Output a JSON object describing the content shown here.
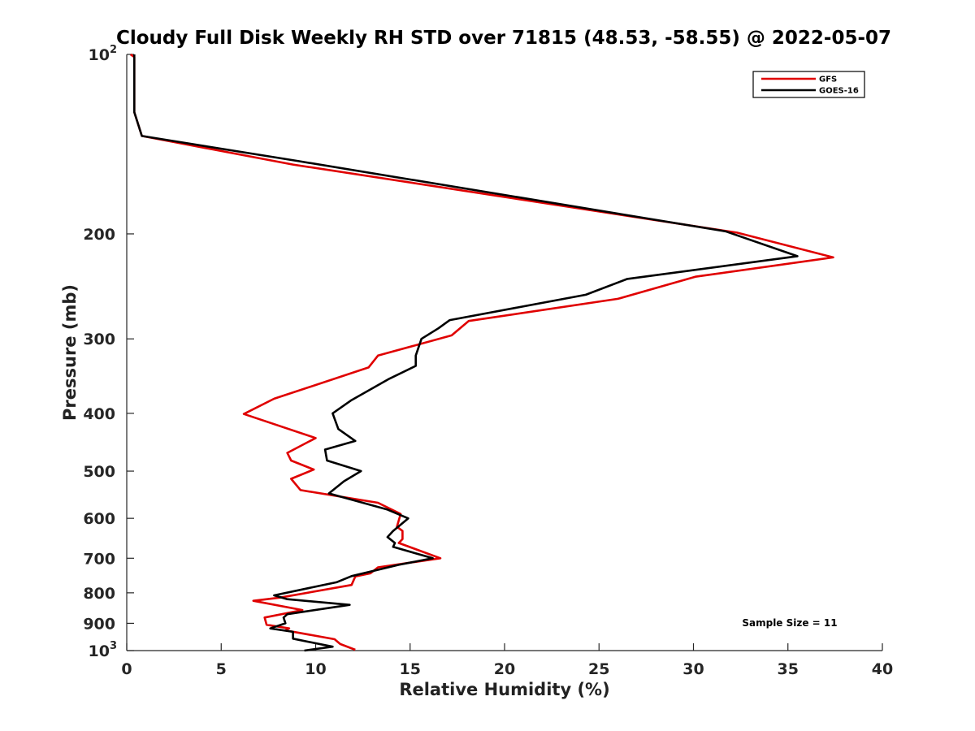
{
  "chart_data": {
    "type": "line",
    "title": "Cloudy Full Disk Weekly RH STD over 71815 (48.53, -58.55) @ 2022-05-07",
    "xlabel": "Relative Humidity (%)",
    "ylabel": "Pressure (mb)",
    "xlim": [
      0,
      40
    ],
    "ylim": [
      100,
      1000
    ],
    "y_scale": "log",
    "y_reversed": true,
    "grid": false,
    "legend_position": "top-right",
    "annotation": "Sample Size = 11",
    "x_ticks": [
      "0",
      "5",
      "10",
      "15",
      "20",
      "25",
      "30",
      "35",
      "40"
    ],
    "y_ticks": [
      {
        "value": 100,
        "base": "10",
        "exp": "2"
      },
      {
        "value": 200,
        "label": "200"
      },
      {
        "value": 300,
        "label": "300"
      },
      {
        "value": 400,
        "label": "400"
      },
      {
        "value": 500,
        "label": "500"
      },
      {
        "value": 600,
        "label": "600"
      },
      {
        "value": 700,
        "label": "700"
      },
      {
        "value": 800,
        "label": "800"
      },
      {
        "value": 900,
        "label": "900"
      },
      {
        "value": 1000,
        "base": "10",
        "exp": "3"
      }
    ],
    "series": [
      {
        "name": "GFS",
        "color": "#e00000",
        "points": [
          [
            0.2,
            100
          ],
          [
            0.4,
            101
          ],
          [
            0.4,
            125
          ],
          [
            0.8,
            137
          ],
          [
            8.8,
            153
          ],
          [
            32.3,
            199
          ],
          [
            37.4,
            219
          ],
          [
            30.1,
            236
          ],
          [
            26.0,
            257
          ],
          [
            18.1,
            280
          ],
          [
            17.2,
            296
          ],
          [
            13.3,
            320
          ],
          [
            12.8,
            335
          ],
          [
            7.8,
            378
          ],
          [
            6.2,
            401
          ],
          [
            10.0,
            440
          ],
          [
            8.5,
            466
          ],
          [
            8.7,
            480
          ],
          [
            9.9,
            497
          ],
          [
            8.7,
            515
          ],
          [
            9.2,
            538
          ],
          [
            13.3,
            565
          ],
          [
            14.5,
            590
          ],
          [
            14.3,
            620
          ],
          [
            14.6,
            630
          ],
          [
            14.6,
            650
          ],
          [
            14.4,
            660
          ],
          [
            16.6,
            700
          ],
          [
            13.3,
            725
          ],
          [
            12.9,
            742
          ],
          [
            12.1,
            751
          ],
          [
            11.9,
            776
          ],
          [
            8.1,
            815
          ],
          [
            6.7,
            825
          ],
          [
            9.3,
            855
          ],
          [
            7.3,
            880
          ],
          [
            7.4,
            905
          ],
          [
            8.6,
            918
          ],
          [
            8.4,
            925
          ],
          [
            11.0,
            957
          ],
          [
            11.3,
            975
          ],
          [
            12.1,
            997
          ]
        ]
      },
      {
        "name": "GOES-16",
        "color": "#000000",
        "points": [
          [
            0.4,
            100
          ],
          [
            0.4,
            101
          ],
          [
            0.4,
            125
          ],
          [
            0.8,
            137
          ],
          [
            9.1,
            151
          ],
          [
            31.7,
            198
          ],
          [
            35.5,
            218
          ],
          [
            26.5,
            238
          ],
          [
            24.3,
            253
          ],
          [
            17.1,
            279
          ],
          [
            16.5,
            288
          ],
          [
            15.6,
            300
          ],
          [
            15.3,
            320
          ],
          [
            15.3,
            333
          ],
          [
            13.9,
            350
          ],
          [
            11.9,
            380
          ],
          [
            10.9,
            400
          ],
          [
            11.2,
            425
          ],
          [
            12.1,
            445
          ],
          [
            10.5,
            460
          ],
          [
            10.6,
            480
          ],
          [
            12.4,
            500
          ],
          [
            11.5,
            520
          ],
          [
            10.7,
            545
          ],
          [
            13.8,
            580
          ],
          [
            14.9,
            600
          ],
          [
            14.1,
            630
          ],
          [
            13.8,
            645
          ],
          [
            14.2,
            660
          ],
          [
            14.1,
            670
          ],
          [
            16.2,
            700
          ],
          [
            14.4,
            718
          ],
          [
            11.9,
            750
          ],
          [
            11.1,
            768
          ],
          [
            7.8,
            808
          ],
          [
            8.5,
            820
          ],
          [
            11.8,
            838
          ],
          [
            8.5,
            869
          ],
          [
            8.3,
            880
          ],
          [
            8.4,
            900
          ],
          [
            7.6,
            918
          ],
          [
            8.8,
            930
          ],
          [
            8.8,
            955
          ],
          [
            10.9,
            985
          ],
          [
            9.4,
            1000
          ]
        ]
      }
    ]
  }
}
